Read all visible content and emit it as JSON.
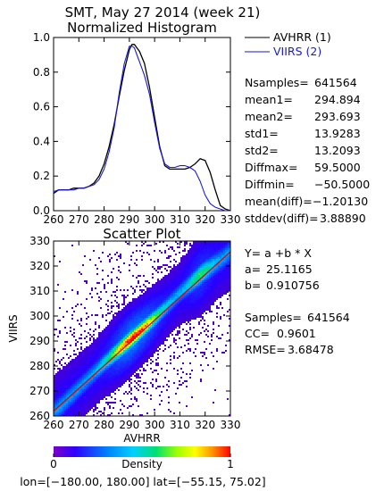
{
  "header": {
    "title": "SMT,  May 27 2014 (week 21)"
  },
  "colors": {
    "avhrr": "#000000",
    "viirs": "#1a1acd",
    "fit_line": "#e00000",
    "density_colormap": [
      "#ffffff",
      "#7a00c8",
      "#2a00ff",
      "#0070ff",
      "#00c8ff",
      "#00e070",
      "#a0ff00",
      "#ffff00",
      "#ff9000",
      "#ff0000"
    ]
  },
  "histogram": {
    "title": "Normalized Histogram",
    "legend": [
      {
        "label": "AVHRR (1)",
        "color": "#000000"
      },
      {
        "label": "VIIRS (2)",
        "color": "#1a1acd"
      }
    ],
    "xlim": [
      260,
      330
    ],
    "ylim": [
      0.0,
      1.0
    ],
    "xticks": [
      "260",
      "270",
      "280",
      "290",
      "300",
      "310",
      "320",
      "330"
    ],
    "yticks": [
      "0.0",
      "0.2",
      "0.4",
      "0.6",
      "0.8",
      "1.0"
    ],
    "stats": [
      {
        "label": "Nsamples=",
        "value": "641564"
      },
      {
        "label": "mean1=",
        "value": "294.894"
      },
      {
        "label": "mean2=",
        "value": "293.693"
      },
      {
        "label": "std1=",
        "value": "13.9283"
      },
      {
        "label": "std2=",
        "value": "13.2093"
      },
      {
        "label": "Diffmax=",
        "value": "59.5000"
      },
      {
        "label": "Diffmin=",
        "value": "−50.5000"
      },
      {
        "label": "mean(diff)=",
        "value": "−1.20130"
      },
      {
        "label": "stddev(diff)=",
        "value": "3.88890"
      }
    ]
  },
  "scatter": {
    "title": "Scatter Plot",
    "xlabel": "AVHRR",
    "ylabel": "VIIRS",
    "xlim": [
      260,
      330
    ],
    "ylim": [
      260,
      330
    ],
    "xticks": [
      "260",
      "270",
      "280",
      "290",
      "300",
      "310",
      "320",
      "330"
    ],
    "yticks": [
      "260",
      "270",
      "280",
      "290",
      "300",
      "310",
      "320",
      "330"
    ],
    "fit": {
      "equation": "Y= a +b * X",
      "a_label": "a=",
      "a_value": "25.1165",
      "b_label": "b=",
      "b_value": "0.910756"
    },
    "stats": [
      {
        "label": "Samples=",
        "value": "641564"
      },
      {
        "label": "CC=",
        "value": "0.9601"
      },
      {
        "label": "RMSE=",
        "value": "3.68478"
      }
    ]
  },
  "colorbar": {
    "label": "Density",
    "min_label": "0",
    "max_label": "1"
  },
  "footer": {
    "region": "lon=[−180.00, 180.00] lat=[−55.15, 75.02]"
  },
  "chart_data": [
    {
      "type": "line",
      "title": "Normalized Histogram",
      "xlabel": "",
      "ylabel": "",
      "xlim": [
        260,
        330
      ],
      "ylim": [
        0,
        1
      ],
      "grid": false,
      "legend_position": "right",
      "series": [
        {
          "name": "AVHRR (1)",
          "x": [
            260,
            262,
            264,
            266,
            268,
            270,
            272,
            274,
            276,
            278,
            280,
            282,
            284,
            286,
            288,
            290,
            291,
            292,
            293,
            294,
            296,
            298,
            300,
            302,
            304,
            306,
            308,
            310,
            312,
            314,
            316,
            318,
            320,
            322,
            324,
            326,
            328,
            330
          ],
          "y": [
            0.1,
            0.12,
            0.12,
            0.12,
            0.13,
            0.13,
            0.13,
            0.14,
            0.16,
            0.2,
            0.27,
            0.37,
            0.5,
            0.66,
            0.81,
            0.93,
            0.96,
            0.96,
            0.94,
            0.92,
            0.85,
            0.71,
            0.54,
            0.37,
            0.26,
            0.24,
            0.24,
            0.24,
            0.24,
            0.25,
            0.27,
            0.3,
            0.29,
            0.22,
            0.12,
            0.03,
            0.01,
            0.0
          ]
        },
        {
          "name": "VIIRS (2)",
          "x": [
            260,
            262,
            264,
            266,
            268,
            270,
            272,
            274,
            276,
            278,
            280,
            282,
            284,
            286,
            288,
            290,
            291,
            292,
            293,
            294,
            296,
            298,
            300,
            302,
            304,
            306,
            308,
            310,
            312,
            314,
            316,
            318,
            320,
            322,
            324,
            326,
            328,
            330
          ],
          "y": [
            0.11,
            0.12,
            0.12,
            0.12,
            0.12,
            0.13,
            0.13,
            0.14,
            0.15,
            0.18,
            0.24,
            0.34,
            0.48,
            0.68,
            0.85,
            0.95,
            0.95,
            0.94,
            0.9,
            0.86,
            0.78,
            0.67,
            0.51,
            0.36,
            0.27,
            0.25,
            0.25,
            0.26,
            0.26,
            0.25,
            0.23,
            0.17,
            0.09,
            0.04,
            0.02,
            0.01,
            0.0,
            0.0
          ]
        }
      ]
    },
    {
      "type": "heatmap",
      "title": "Scatter Plot",
      "xlabel": "AVHRR",
      "ylabel": "VIIRS",
      "xlim": [
        260,
        330
      ],
      "ylim": [
        260,
        330
      ],
      "colorbar": {
        "label": "Density",
        "range": [
          0,
          1
        ]
      },
      "fit_line": {
        "a": 25.1165,
        "b": 0.910756
      },
      "density_ridge": {
        "x": [
          262,
          270,
          280,
          290,
          300,
          310,
          320,
          327
        ],
        "y": [
          263,
          271,
          281,
          290,
          299,
          309,
          318,
          323
        ]
      },
      "stats": {
        "Samples": 641564,
        "CC": 0.9601,
        "RMSE": 3.68478
      }
    }
  ]
}
